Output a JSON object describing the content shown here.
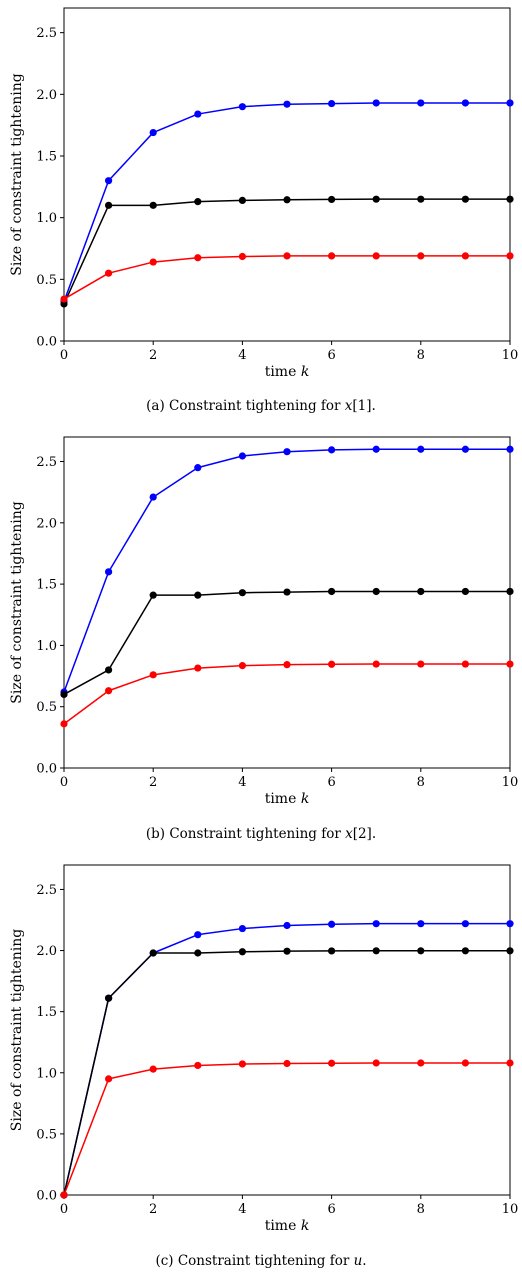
{
  "chart_data": [
    {
      "type": "line",
      "xlabel": "time k",
      "xlabel_parts": {
        "text": "time ",
        "var": "k"
      },
      "ylabel": "Size of constraint tightening",
      "xlim": [
        0,
        10
      ],
      "ylim": [
        0,
        2.7
      ],
      "xticks": [
        "0",
        "2",
        "4",
        "6",
        "8",
        "10"
      ],
      "yticks": [
        "0.0",
        "0.5",
        "1.0",
        "1.5",
        "2.0",
        "2.5"
      ],
      "caption": {
        "prefix": "(a) Constraint tightening for ",
        "var": "x",
        "suffix": "[1]."
      },
      "x": [
        0,
        1,
        2,
        3,
        4,
        5,
        6,
        7,
        8,
        9,
        10
      ],
      "series": [
        {
          "color": "#0000ff",
          "values": [
            0.32,
            1.3,
            1.69,
            1.84,
            1.9,
            1.92,
            1.925,
            1.93,
            1.93,
            1.93,
            1.93
          ]
        },
        {
          "color": "#000000",
          "values": [
            0.3,
            1.1,
            1.1,
            1.13,
            1.14,
            1.145,
            1.148,
            1.15,
            1.15,
            1.15,
            1.15
          ]
        },
        {
          "color": "#ff0000",
          "values": [
            0.34,
            0.55,
            0.64,
            0.675,
            0.685,
            0.69,
            0.69,
            0.69,
            0.69,
            0.69,
            0.69
          ]
        }
      ]
    },
    {
      "type": "line",
      "xlabel": "time k",
      "xlabel_parts": {
        "text": "time ",
        "var": "k"
      },
      "ylabel": "Size of constraint tightening",
      "xlim": [
        0,
        10
      ],
      "ylim": [
        0,
        2.7
      ],
      "xticks": [
        "0",
        "2",
        "4",
        "6",
        "8",
        "10"
      ],
      "yticks": [
        "0.0",
        "0.5",
        "1.0",
        "1.5",
        "2.0",
        "2.5"
      ],
      "caption": {
        "prefix": "(b) Constraint tightening for ",
        "var": "x",
        "suffix": "[2]."
      },
      "x": [
        0,
        1,
        2,
        3,
        4,
        5,
        6,
        7,
        8,
        9,
        10
      ],
      "series": [
        {
          "color": "#0000ff",
          "values": [
            0.62,
            1.6,
            2.21,
            2.45,
            2.545,
            2.58,
            2.595,
            2.6,
            2.6,
            2.6,
            2.6
          ]
        },
        {
          "color": "#000000",
          "values": [
            0.6,
            0.8,
            1.41,
            1.41,
            1.43,
            1.435,
            1.44,
            1.44,
            1.44,
            1.44,
            1.44
          ]
        },
        {
          "color": "#ff0000",
          "values": [
            0.36,
            0.63,
            0.76,
            0.815,
            0.835,
            0.843,
            0.846,
            0.848,
            0.848,
            0.848,
            0.848
          ]
        }
      ]
    },
    {
      "type": "line",
      "xlabel": "time k",
      "xlabel_parts": {
        "text": "time ",
        "var": "k"
      },
      "ylabel": "Size of constraint tightening",
      "xlim": [
        0,
        10
      ],
      "ylim": [
        0,
        2.7
      ],
      "xticks": [
        "0",
        "2",
        "4",
        "6",
        "8",
        "10"
      ],
      "yticks": [
        "0.0",
        "0.5",
        "1.0",
        "1.5",
        "2.0",
        "2.5"
      ],
      "caption": {
        "prefix": "(c) Constraint tightening for ",
        "var": "u",
        "suffix": "."
      },
      "x": [
        0,
        1,
        2,
        3,
        4,
        5,
        6,
        7,
        8,
        9,
        10
      ],
      "series": [
        {
          "color": "#0000ff",
          "values": [
            0.0,
            1.61,
            1.98,
            2.13,
            2.18,
            2.205,
            2.215,
            2.22,
            2.22,
            2.22,
            2.22
          ]
        },
        {
          "color": "#000000",
          "values": [
            0.0,
            1.61,
            1.98,
            1.98,
            1.99,
            1.995,
            1.997,
            1.998,
            1.998,
            1.998,
            1.998
          ]
        },
        {
          "color": "#ff0000",
          "values": [
            0.0,
            0.95,
            1.03,
            1.06,
            1.072,
            1.076,
            1.078,
            1.08,
            1.08,
            1.08,
            1.08
          ]
        }
      ]
    }
  ]
}
